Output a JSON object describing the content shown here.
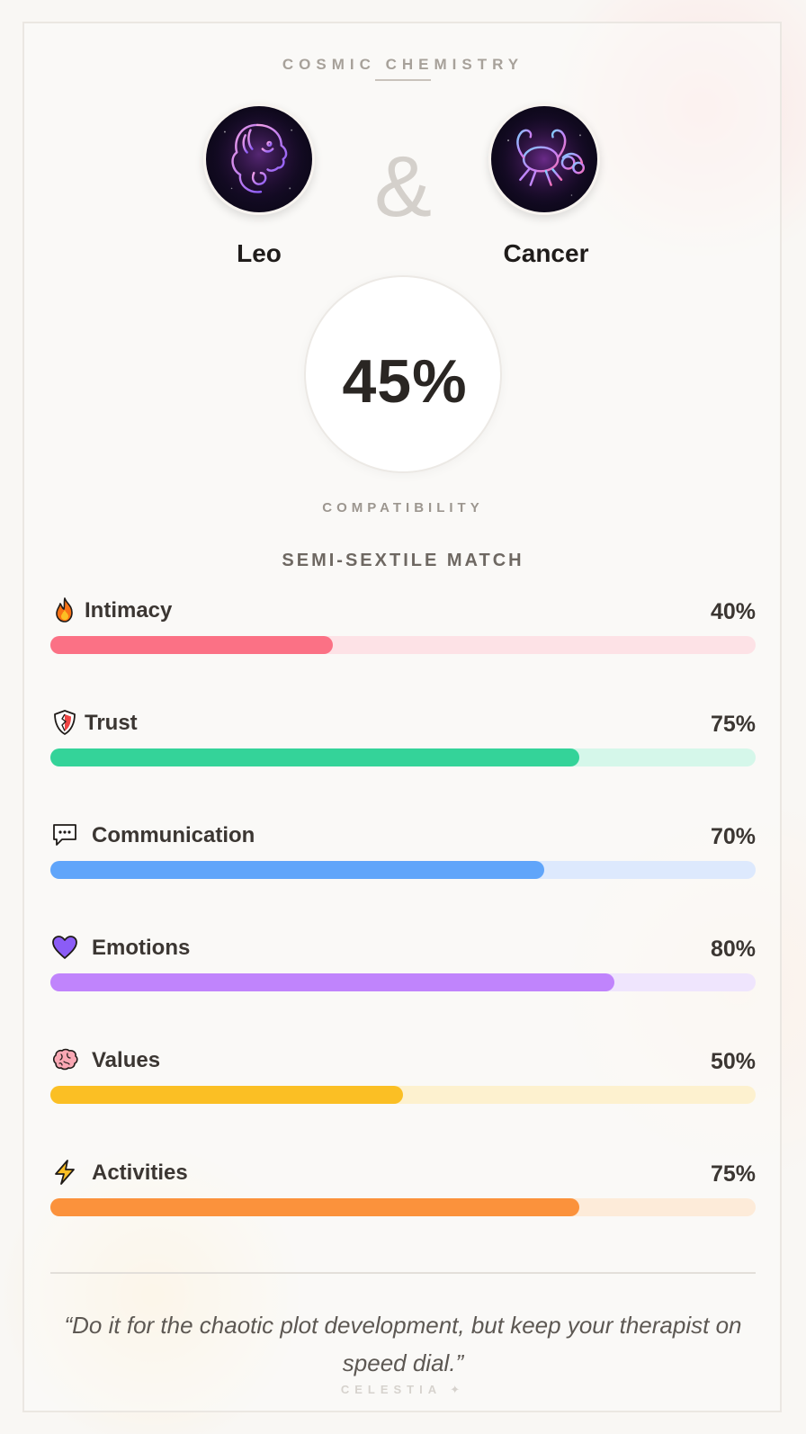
{
  "header": {
    "label": "COSMIC CHEMISTRY"
  },
  "pair": {
    "sign_a": {
      "name": "Leo",
      "icon": "leo-zodiac-icon"
    },
    "connector": "&",
    "sign_b": {
      "name": "Cancer",
      "icon": "cancer-zodiac-icon"
    }
  },
  "score": {
    "value": "45%",
    "label": "COMPATIBILITY",
    "match_type": "SEMI-SEXTILE MATCH"
  },
  "metrics": [
    {
      "label": "Intimacy",
      "value_text": "40%",
      "value": 40,
      "icon": "fire-icon",
      "color": "#fb7185",
      "track_color": "#fde2e6"
    },
    {
      "label": "Trust",
      "value_text": "75%",
      "value": 75,
      "icon": "shield-icon",
      "color": "#34d399",
      "track_color": "#d5f7ea"
    },
    {
      "label": "Communication",
      "value_text": "70%",
      "value": 70,
      "icon": "speech-bubble-icon",
      "color": "#60a5fa",
      "track_color": "#dde9fd"
    },
    {
      "label": "Emotions",
      "value_text": "80%",
      "value": 80,
      "icon": "heart-icon",
      "color": "#c084fc",
      "track_color": "#efe5fd"
    },
    {
      "label": "Values",
      "value_text": "50%",
      "value": 50,
      "icon": "brain-icon",
      "color": "#fbbf24",
      "track_color": "#fdf1cf"
    },
    {
      "label": "Activities",
      "value_text": "75%",
      "value": 75,
      "icon": "lightning-icon",
      "color": "#fb923c",
      "track_color": "#fdebd9"
    }
  ],
  "quote": "“Do it for the chaotic plot development, but keep your therapist on speed dial.”",
  "brand": "CELESTIA ✦"
}
